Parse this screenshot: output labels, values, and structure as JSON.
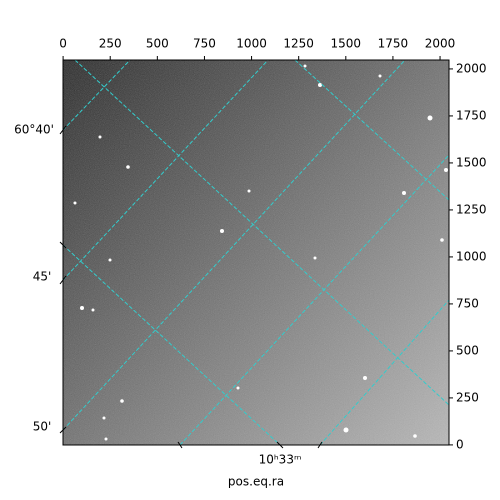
{
  "chart_data": {
    "type": "image",
    "xlabel": "pos.eq.ra",
    "xlim": [
      -0.5,
      2047.5
    ],
    "ylim": [
      -0.5,
      2047.5
    ],
    "xticks": [
      0,
      250,
      500,
      750,
      1000,
      1250,
      1500,
      1750,
      2000
    ],
    "yticks": [
      0,
      250,
      500,
      750,
      1000,
      1250,
      1500,
      1750,
      2000
    ],
    "dec_labels": [
      "60°40'",
      "45'",
      "50'"
    ],
    "ra_labels": [
      "10ʰ33ᵐ"
    ],
    "grid_color": "#33cccc"
  }
}
